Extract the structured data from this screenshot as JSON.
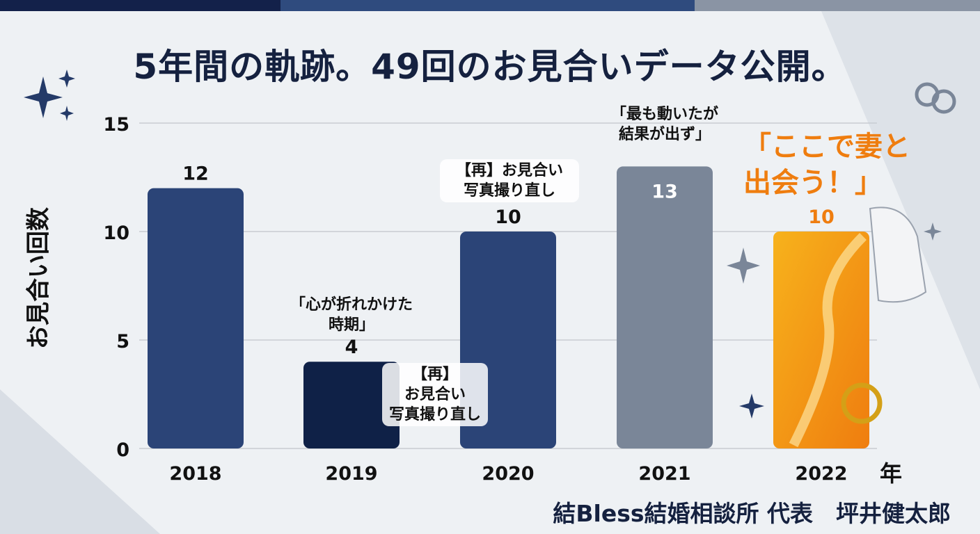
{
  "title": "5年間の軌跡。49回のお見合いデータ公開。",
  "footer": "結Bless結婚相談所  代表　坪井健太郎",
  "colors": {
    "bar_dark": "#0f2147",
    "bar_navy": "#2b4477",
    "bar_gray": "#7a8698",
    "bar_orange": "#f59a12",
    "title": "#15213f",
    "highlight": "#ef7d0f"
  },
  "chart_data": {
    "type": "bar",
    "title": "5年間の軌跡。49回のお見合いデータ公開。",
    "xlabel": "年",
    "ylabel": "お見合い回数",
    "categories": [
      "2018",
      "2019",
      "2020",
      "2021",
      "2022"
    ],
    "values": [
      12,
      4,
      10,
      13,
      10
    ],
    "value_labels": [
      "12",
      "4",
      "10",
      "13",
      "10"
    ],
    "bar_colors": [
      "#2b4477",
      "#0f2147",
      "#2b4477",
      "#7a8698",
      "#f59a12"
    ],
    "ylim": [
      0,
      15
    ],
    "yticks": [
      "0",
      "5",
      "10",
      "15"
    ],
    "grid": true,
    "annotations": [
      {
        "text": "「心が折れかけた\n時期」",
        "category": "2019"
      },
      {
        "text": "【再】\nお見合い\n写真撮り直し",
        "category": "2019"
      },
      {
        "text": "【再】お見合い\n写真撮り直し",
        "category": "2020"
      },
      {
        "text": "「最も動いたが\n結果が出ず」",
        "category": "2021"
      },
      {
        "text": "「ここで妻と\n出会う！」",
        "category": "2022"
      }
    ]
  }
}
